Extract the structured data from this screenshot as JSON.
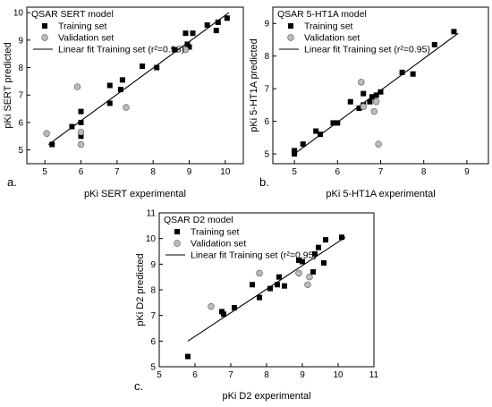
{
  "chart_data": [
    {
      "type": "scatter",
      "panel_label": "a.",
      "title": "QSAR SERT model",
      "xlabel": "pKi SERT experimental",
      "ylabel": "pKi SERT predicted",
      "xlim": [
        4.5,
        10.5
      ],
      "ylim": [
        4.5,
        10.2
      ],
      "xticks": [
        5,
        6,
        7,
        8,
        9,
        10
      ],
      "yticks": [
        5,
        6,
        7,
        8,
        9,
        10
      ],
      "grid": false,
      "legend_position": "top-left",
      "series": [
        {
          "name": "Training set",
          "marker": "square",
          "color": "#000000",
          "points": [
            [
              5.2,
              5.2
            ],
            [
              5.75,
              5.85
            ],
            [
              6.0,
              5.5
            ],
            [
              6.0,
              6.0
            ],
            [
              6.0,
              6.4
            ],
            [
              6.8,
              6.7
            ],
            [
              6.8,
              7.35
            ],
            [
              7.1,
              7.2
            ],
            [
              7.15,
              7.55
            ],
            [
              7.7,
              8.05
            ],
            [
              8.1,
              8.0
            ],
            [
              8.6,
              8.65
            ],
            [
              8.9,
              9.25
            ],
            [
              8.95,
              8.85
            ],
            [
              9.0,
              8.75
            ],
            [
              9.1,
              9.25
            ],
            [
              9.5,
              9.55
            ],
            [
              9.75,
              9.35
            ],
            [
              9.8,
              9.65
            ],
            [
              10.05,
              9.8
            ]
          ]
        },
        {
          "name": "Validation set",
          "marker": "circle",
          "color": "#bbbbbb",
          "points": [
            [
              5.05,
              5.6
            ],
            [
              5.9,
              7.3
            ],
            [
              6.0,
              5.2
            ],
            [
              6.0,
              5.65
            ],
            [
              7.25,
              6.55
            ],
            [
              8.9,
              8.65
            ]
          ]
        }
      ],
      "fit": {
        "name": "Linear fit Training set (r²=0.96)",
        "x": [
          5.1,
          10.1
        ],
        "y": [
          5.2,
          10.0
        ]
      }
    },
    {
      "type": "scatter",
      "panel_label": "b.",
      "title": "QSAR 5-HT1A model",
      "xlabel": "pKi 5-HT1A experimental",
      "ylabel": "pKi 5-HT1A predicted",
      "xlim": [
        4.5,
        9.5
      ],
      "ylim": [
        4.7,
        9.5
      ],
      "xticks": [
        5,
        6,
        7,
        8,
        9
      ],
      "yticks": [
        5,
        6,
        7,
        8,
        9
      ],
      "grid": false,
      "legend_position": "top-left",
      "series": [
        {
          "name": "Training set",
          "marker": "square",
          "color": "#000000",
          "points": [
            [
              5.0,
              5.0
            ],
            [
              5.0,
              5.1
            ],
            [
              5.2,
              5.3
            ],
            [
              5.5,
              5.7
            ],
            [
              5.6,
              5.6
            ],
            [
              5.9,
              5.95
            ],
            [
              6.0,
              5.95
            ],
            [
              6.3,
              6.6
            ],
            [
              6.5,
              6.4
            ],
            [
              6.6,
              6.5
            ],
            [
              6.6,
              6.85
            ],
            [
              6.75,
              6.6
            ],
            [
              6.8,
              6.75
            ],
            [
              6.9,
              6.8
            ],
            [
              7.0,
              6.9
            ],
            [
              7.5,
              7.5
            ],
            [
              7.75,
              7.45
            ],
            [
              8.25,
              8.35
            ],
            [
              8.7,
              8.75
            ]
          ]
        },
        {
          "name": "Validation set",
          "marker": "circle",
          "color": "#bbbbbb",
          "points": [
            [
              6.55,
              7.2
            ],
            [
              6.6,
              6.45
            ],
            [
              6.85,
              6.3
            ],
            [
              6.9,
              6.6
            ],
            [
              6.95,
              5.3
            ]
          ]
        }
      ],
      "fit": {
        "name": "Linear fit Training set (r²=0.95)",
        "x": [
          5.0,
          8.8
        ],
        "y": [
          5.0,
          8.7
        ]
      }
    },
    {
      "type": "scatter",
      "panel_label": "c.",
      "title": "QSAR D2 model",
      "xlabel": "pKi D2 experimental",
      "ylabel": "pKi D2 predicted",
      "xlim": [
        5,
        11
      ],
      "ylim": [
        5,
        11
      ],
      "xticks": [
        5,
        6,
        7,
        8,
        9,
        10,
        11
      ],
      "yticks": [
        5,
        6,
        7,
        8,
        9,
        10,
        11
      ],
      "grid": false,
      "legend_position": "top-left",
      "series": [
        {
          "name": "Training set",
          "marker": "square",
          "color": "#000000",
          "points": [
            [
              5.8,
              5.4
            ],
            [
              6.75,
              7.15
            ],
            [
              6.8,
              7.05
            ],
            [
              7.1,
              7.3
            ],
            [
              7.6,
              8.2
            ],
            [
              7.8,
              7.7
            ],
            [
              8.1,
              8.05
            ],
            [
              8.3,
              8.2
            ],
            [
              8.35,
              8.5
            ],
            [
              8.5,
              8.15
            ],
            [
              8.9,
              9.15
            ],
            [
              9.0,
              9.1
            ],
            [
              9.3,
              8.7
            ],
            [
              9.35,
              9.4
            ],
            [
              9.45,
              9.65
            ],
            [
              9.6,
              9.05
            ],
            [
              9.65,
              9.95
            ],
            [
              10.1,
              10.05
            ]
          ]
        },
        {
          "name": "Validation set",
          "marker": "circle",
          "color": "#bbbbbb",
          "points": [
            [
              6.45,
              7.35
            ],
            [
              7.8,
              8.65
            ],
            [
              8.9,
              8.65
            ],
            [
              9.15,
              8.2
            ],
            [
              9.2,
              8.5
            ]
          ]
        }
      ],
      "fit": {
        "name": "Linear fit Training set (r²=0.95)",
        "x": [
          5.8,
          10.2
        ],
        "y": [
          6.0,
          10.05
        ]
      }
    }
  ]
}
